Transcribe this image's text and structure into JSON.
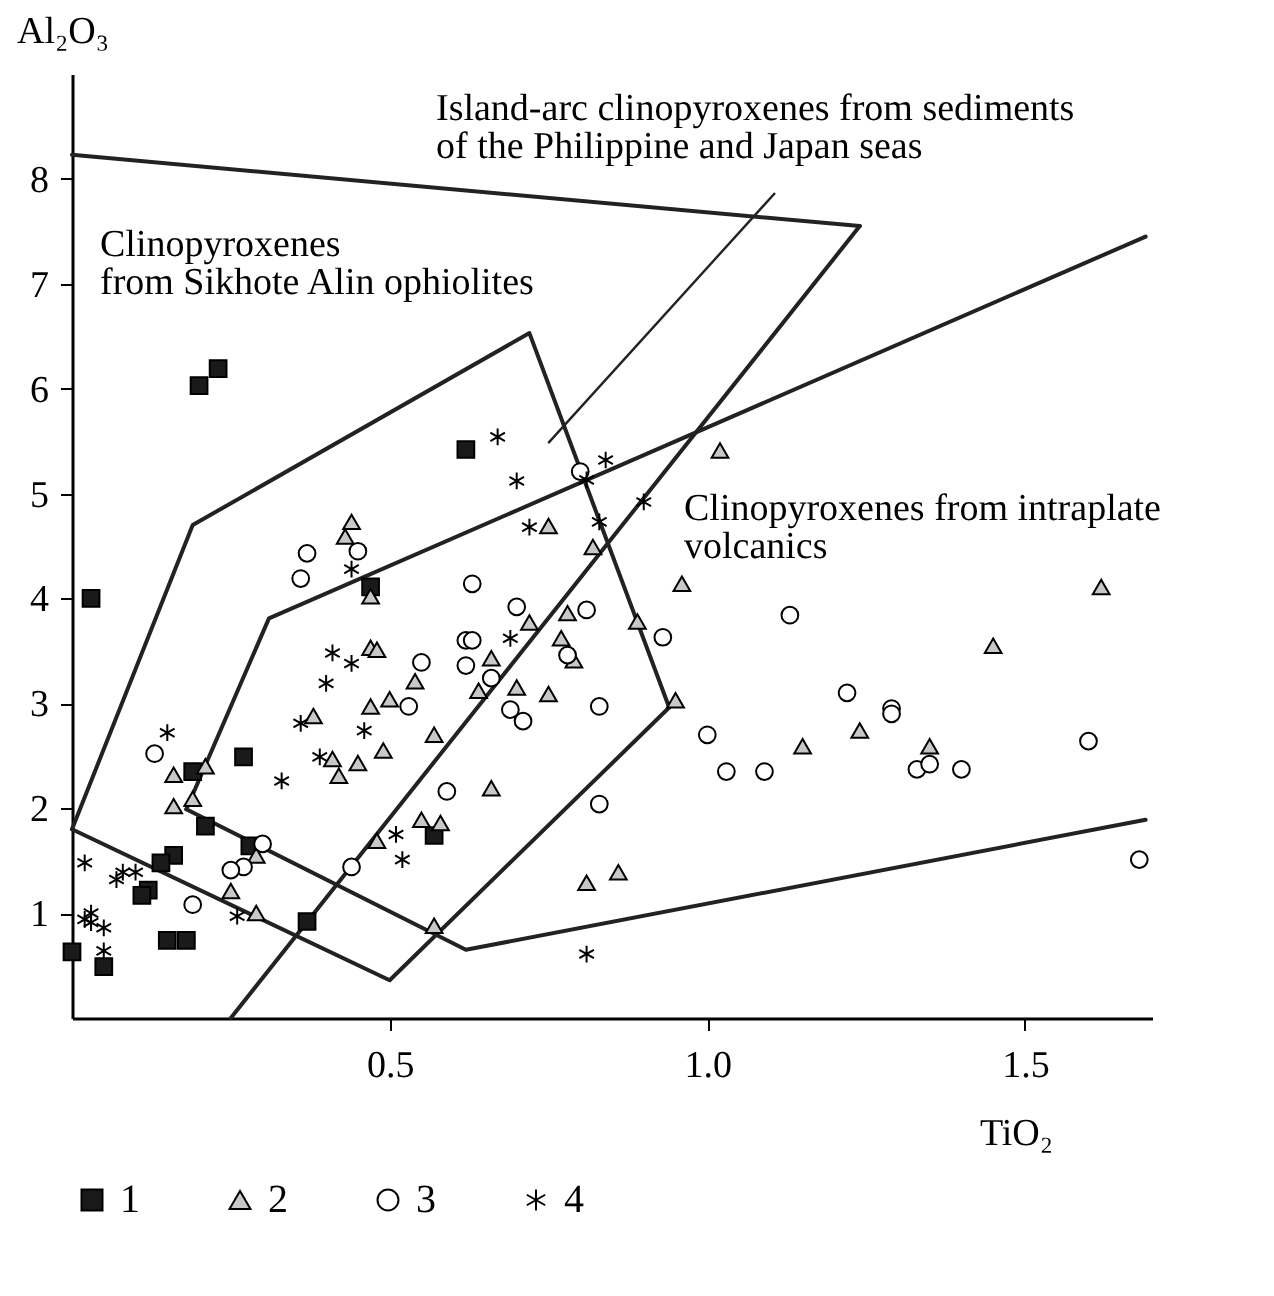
{
  "chart_data": {
    "type": "scatter",
    "xlabel": "TiO₂",
    "ylabel": "Al₂O₃",
    "xlim": [
      0,
      1.7
    ],
    "ylim": [
      0,
      9
    ],
    "xticks": [
      {
        "value": 0.5,
        "label": "0.5"
      },
      {
        "value": 1,
        "label": "1.0"
      },
      {
        "value": 1.5,
        "label": "1.5"
      }
    ],
    "yticks": [
      1,
      2,
      3,
      4,
      5,
      6,
      7,
      8
    ],
    "grid": false,
    "legend": "bottom",
    "annotations": [
      "Island-arc clinopyroxenes from sediments\nof the Philippine and Japan seas",
      "Clinopyroxenes\nfrom Sikhote Alin ophiolites",
      "Clinopyroxenes from intraplate\nvolcanics"
    ],
    "series": [
      {
        "type": "line",
        "color": "#222222",
        "marker": "none",
        "x": [
          0,
          0.19,
          0.72,
          0.94
        ],
        "values": [
          1.8,
          4.7,
          6.53,
          2.96
        ]
      },
      {
        "type": "line",
        "color": "#222222",
        "marker": "none",
        "x": [
          0,
          0.5,
          0.94
        ],
        "values": [
          1.8,
          0.36,
          2.96
        ]
      },
      {
        "type": "line",
        "color": "#222222",
        "marker": "none",
        "x": [
          0,
          1.24
        ],
        "values": [
          8.23,
          7.55
        ]
      },
      {
        "type": "line",
        "color": "#222222",
        "marker": "none",
        "x": [
          0.25,
          1.24
        ],
        "values": [
          0,
          7.55
        ]
      },
      {
        "type": "line",
        "color": "#222222",
        "marker": "none",
        "x": [
          0.18,
          0.31,
          1.69
        ],
        "values": [
          1.99,
          3.81,
          7.45
        ]
      },
      {
        "type": "line",
        "color": "#222222",
        "marker": "none",
        "x": [
          0.18,
          0.62,
          1.69
        ],
        "values": [
          1.99,
          0.65,
          1.89
        ]
      },
      {
        "name": "1",
        "color": "#1a1a1a",
        "marker": "square",
        "x": [
          0.03,
          0.2,
          0.23,
          0.62,
          0.47,
          0.27,
          0.19,
          0.21,
          0.28,
          0.16,
          0.14,
          0.12,
          0.11,
          0.37,
          0.15,
          0.18,
          0,
          0.05,
          0.57
        ],
        "values": [
          4.0,
          6.03,
          6.19,
          5.42,
          4.11,
          2.49,
          2.35,
          1.83,
          1.64,
          1.55,
          1.48,
          1.22,
          1.17,
          0.92,
          0.74,
          0.74,
          0.63,
          0.49,
          1.74
        ]
      },
      {
        "name": "2",
        "color": "#c8c8c8",
        "marker": "triangle",
        "x": [
          0.44,
          0.43,
          0.47,
          0.47,
          0.48,
          0.38,
          0.47,
          0.5,
          0.54,
          0.57,
          0.49,
          0.41,
          0.42,
          0.45,
          0.21,
          0.16,
          0.16,
          0.19,
          0.29,
          0.25,
          0.29,
          0.48,
          0.55,
          0.58,
          0.57,
          0.66,
          0.64,
          0.66,
          0.7,
          0.75,
          0.72,
          0.77,
          0.79,
          0.78,
          0.89,
          0.82,
          0.75,
          0.81,
          0.86,
          1.02,
          0.96,
          0.95,
          1.15,
          1.24,
          1.35,
          1.45,
          1.62
        ],
        "values": [
          4.73,
          4.59,
          4.02,
          3.53,
          3.51,
          2.88,
          2.97,
          3.04,
          3.21,
          2.7,
          2.55,
          2.47,
          2.31,
          2.43,
          2.4,
          2.32,
          2.02,
          2.09,
          1.55,
          1.21,
          1.0,
          1.69,
          1.89,
          1.86,
          0.88,
          2.19,
          3.12,
          3.43,
          3.15,
          3.09,
          3.77,
          3.62,
          3.41,
          3.86,
          3.78,
          4.49,
          4.69,
          1.29,
          1.39,
          5.41,
          4.14,
          3.03,
          2.59,
          2.74,
          2.59,
          3.55,
          4.11
        ]
      },
      {
        "name": "3",
        "color": "#ffffff",
        "marker": "circle",
        "x": [
          0.37,
          0.36,
          0.45,
          0.63,
          0.7,
          0.62,
          0.63,
          0.62,
          0.66,
          0.55,
          0.53,
          0.69,
          0.71,
          0.81,
          0.78,
          0.83,
          0.83,
          0.59,
          0.44,
          0.3,
          0.27,
          0.25,
          0.13,
          0.19,
          0.93,
          0.8,
          1.13,
          1.22,
          1.29,
          1.29,
          1.0,
          1.03,
          1.09,
          1.33,
          1.35,
          1.4,
          1.6,
          1.68
        ],
        "values": [
          4.43,
          4.19,
          4.45,
          4.14,
          3.92,
          3.6,
          3.6,
          3.36,
          3.24,
          3.39,
          2.97,
          2.94,
          2.83,
          3.89,
          3.46,
          2.97,
          2.04,
          2.16,
          1.44,
          1.66,
          1.44,
          1.41,
          2.52,
          1.08,
          3.63,
          5.21,
          3.84,
          3.1,
          2.95,
          2.9,
          2.7,
          2.35,
          2.35,
          2.37,
          2.42,
          2.37,
          2.64,
          1.51
        ]
      },
      {
        "name": "4",
        "color": "#000000",
        "marker": "cross",
        "x": [
          0.44,
          0.72,
          0.83,
          0.41,
          0.44,
          0.4,
          0.36,
          0.46,
          0.39,
          0.33,
          0.15,
          0.69,
          0.51,
          0.52,
          0.26,
          0.02,
          0.07,
          0.08,
          0.1,
          0.02,
          0.03,
          0.05,
          0.05,
          0.81,
          0.67,
          0.7,
          0.84,
          0.81,
          0.9,
          0.03
        ],
        "values": [
          4.28,
          4.68,
          4.73,
          3.48,
          3.38,
          3.19,
          2.81,
          2.74,
          2.49,
          2.26,
          2.72,
          3.62,
          1.75,
          1.51,
          0.97,
          1.48,
          1.32,
          1.39,
          1.39,
          0.94,
          0.91,
          0.86,
          0.64,
          0.61,
          5.54,
          5.12,
          5.32,
          5.13,
          4.92,
          1.0
        ]
      }
    ]
  }
}
